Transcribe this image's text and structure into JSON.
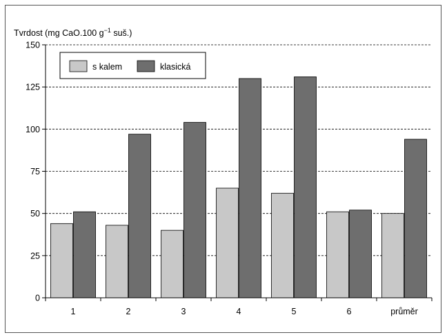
{
  "chart_data": {
    "type": "bar",
    "ylabel_prefix": "Tvrdost (mg CaO.100 g",
    "ylabel_exp": "−1",
    "ylabel_suffix": " suš.)",
    "categories": [
      "1",
      "2",
      "3",
      "4",
      "5",
      "6",
      "průměr"
    ],
    "series": [
      {
        "name": "s kalem",
        "values": [
          44,
          43,
          40,
          65,
          62,
          51,
          50
        ],
        "color": "#c8c8c8"
      },
      {
        "name": "klasická",
        "values": [
          51,
          97,
          104,
          130,
          131,
          52,
          94
        ],
        "color": "#6e6e6e"
      }
    ],
    "ylim": [
      0,
      150
    ],
    "yticks": [
      "0",
      "25",
      "50",
      "75",
      "100",
      "125",
      "150"
    ],
    "grid": "dashed-horizontal",
    "legend": "top-left"
  }
}
